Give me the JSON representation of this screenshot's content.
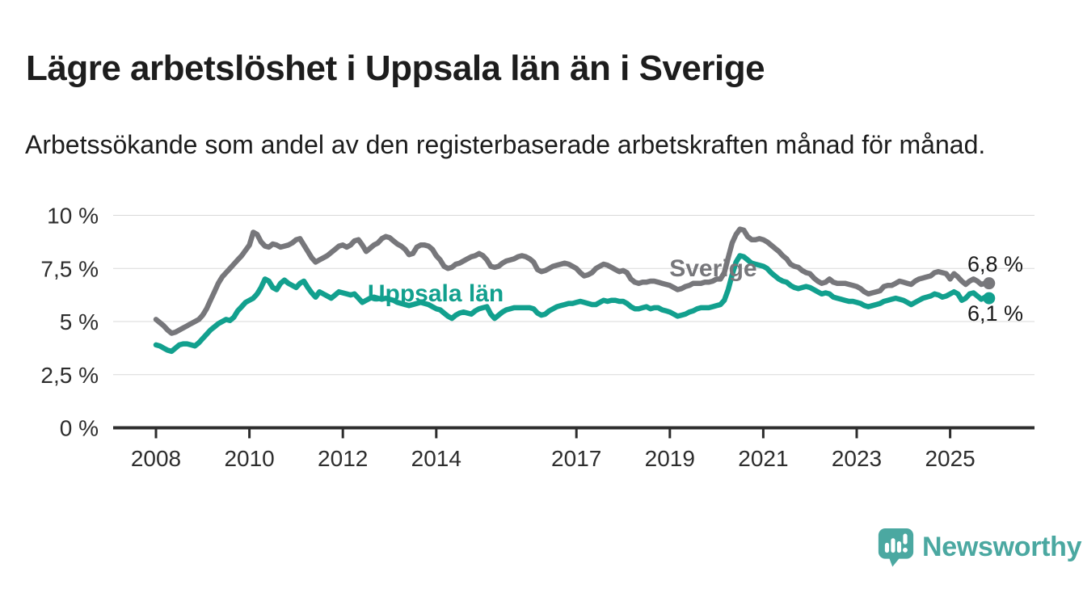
{
  "header": {
    "title": "Lägre arbetslöshet i Uppsala län än i Sverige",
    "subtitle": "Arbetssökande som andel av den registerbaserade arbetskraften månad för månad."
  },
  "chart_data": {
    "type": "line",
    "title": "Lägre arbetslöshet i Uppsala län än i Sverige",
    "x_unit": "month",
    "x_start": "2008-01",
    "x_end": "2025-11",
    "ylim": [
      0,
      10
    ],
    "grid": "horizontal",
    "legend_position": "inline-labels",
    "yticks": [
      {
        "value": 0,
        "label": "0 %"
      },
      {
        "value": 2.5,
        "label": "2,5 %"
      },
      {
        "value": 5,
        "label": "5 %"
      },
      {
        "value": 7.5,
        "label": "7,5 %"
      },
      {
        "value": 10,
        "label": "10 %"
      }
    ],
    "xticks": [
      {
        "value": 2008,
        "label": "2008"
      },
      {
        "value": 2010,
        "label": "2010"
      },
      {
        "value": 2012,
        "label": "2012"
      },
      {
        "value": 2014,
        "label": "2014"
      },
      {
        "value": 2017,
        "label": "2017"
      },
      {
        "value": 2019,
        "label": "2019"
      },
      {
        "value": 2021,
        "label": "2021"
      },
      {
        "value": 2023,
        "label": "2023"
      },
      {
        "value": 2025,
        "label": "2025"
      }
    ],
    "series": [
      {
        "name": "Sverige",
        "color": "#77777b",
        "label_anchor": {
          "year": 2018.99,
          "pct": 7.13
        },
        "end_label": {
          "text": "6,8 %",
          "year": 2025.37,
          "pct": 7.36
        },
        "last_value": 6.8,
        "values": [
          5.1,
          4.95,
          4.8,
          4.6,
          4.45,
          4.5,
          4.6,
          4.7,
          4.8,
          4.9,
          5.0,
          5.1,
          5.3,
          5.6,
          6.0,
          6.4,
          6.8,
          7.1,
          7.3,
          7.5,
          7.7,
          7.9,
          8.1,
          8.35,
          8.6,
          9.2,
          9.1,
          8.75,
          8.55,
          8.5,
          8.65,
          8.6,
          8.5,
          8.55,
          8.6,
          8.7,
          8.85,
          8.9,
          8.6,
          8.3,
          8.0,
          7.8,
          7.9,
          8.0,
          8.1,
          8.25,
          8.4,
          8.55,
          8.6,
          8.5,
          8.6,
          8.8,
          8.85,
          8.6,
          8.3,
          8.45,
          8.6,
          8.7,
          8.9,
          9.0,
          8.95,
          8.8,
          8.65,
          8.55,
          8.4,
          8.15,
          8.2,
          8.5,
          8.6,
          8.6,
          8.55,
          8.4,
          8.1,
          7.9,
          7.6,
          7.5,
          7.55,
          7.7,
          7.75,
          7.85,
          7.95,
          8.05,
          8.1,
          8.2,
          8.1,
          7.9,
          7.6,
          7.55,
          7.6,
          7.75,
          7.85,
          7.9,
          7.95,
          8.05,
          8.1,
          8.05,
          7.95,
          7.8,
          7.45,
          7.35,
          7.4,
          7.5,
          7.6,
          7.65,
          7.7,
          7.75,
          7.7,
          7.6,
          7.5,
          7.3,
          7.15,
          7.2,
          7.3,
          7.5,
          7.6,
          7.7,
          7.65,
          7.55,
          7.45,
          7.35,
          7.4,
          7.3,
          7.0,
          6.85,
          6.8,
          6.85,
          6.85,
          6.9,
          6.9,
          6.85,
          6.8,
          6.75,
          6.7,
          6.6,
          6.5,
          6.55,
          6.65,
          6.7,
          6.8,
          6.8,
          6.8,
          6.85,
          6.85,
          6.9,
          7.0,
          7.0,
          7.3,
          8.0,
          8.7,
          9.1,
          9.35,
          9.3,
          9.0,
          8.85,
          8.85,
          8.9,
          8.85,
          8.75,
          8.6,
          8.45,
          8.3,
          8.1,
          7.95,
          7.7,
          7.6,
          7.55,
          7.4,
          7.3,
          7.25,
          7.05,
          6.9,
          6.8,
          6.85,
          7.0,
          6.85,
          6.8,
          6.8,
          6.8,
          6.75,
          6.7,
          6.65,
          6.55,
          6.4,
          6.3,
          6.35,
          6.4,
          6.45,
          6.65,
          6.7,
          6.7,
          6.8,
          6.9,
          6.85,
          6.8,
          6.75,
          6.9,
          7.0,
          7.05,
          7.1,
          7.15,
          7.3,
          7.35,
          7.3,
          7.25,
          7.0,
          7.25,
          7.1,
          6.9,
          6.75,
          6.9,
          7.0,
          6.9,
          6.75,
          6.8,
          6.8
        ]
      },
      {
        "name": "Uppsala län",
        "color": "#12a08e",
        "label_anchor": {
          "year": 2012.53,
          "pct": 5.95
        },
        "end_label": {
          "text": "6,1 %",
          "year": 2025.37,
          "pct": 5.04
        },
        "last_value": 6.1,
        "values": [
          3.9,
          3.85,
          3.75,
          3.65,
          3.6,
          3.75,
          3.9,
          3.95,
          3.95,
          3.9,
          3.85,
          4.0,
          4.2,
          4.4,
          4.6,
          4.75,
          4.9,
          5.0,
          5.1,
          5.05,
          5.2,
          5.5,
          5.7,
          5.9,
          6.0,
          6.1,
          6.3,
          6.6,
          7.0,
          6.9,
          6.6,
          6.5,
          6.8,
          6.95,
          6.8,
          6.7,
          6.6,
          6.8,
          6.9,
          6.6,
          6.35,
          6.15,
          6.4,
          6.3,
          6.2,
          6.1,
          6.25,
          6.4,
          6.35,
          6.3,
          6.25,
          6.3,
          6.1,
          5.9,
          6.0,
          6.1,
          6.15,
          6.1,
          6.05,
          6.1,
          6.05,
          6.0,
          5.9,
          5.85,
          5.8,
          5.75,
          5.8,
          5.85,
          5.9,
          5.85,
          5.8,
          5.7,
          5.6,
          5.55,
          5.4,
          5.25,
          5.15,
          5.3,
          5.4,
          5.45,
          5.4,
          5.35,
          5.5,
          5.6,
          5.65,
          5.7,
          5.35,
          5.15,
          5.3,
          5.45,
          5.55,
          5.6,
          5.65,
          5.65,
          5.65,
          5.65,
          5.65,
          5.6,
          5.4,
          5.3,
          5.35,
          5.5,
          5.6,
          5.7,
          5.75,
          5.8,
          5.85,
          5.85,
          5.9,
          5.95,
          5.9,
          5.85,
          5.8,
          5.8,
          5.9,
          6.0,
          5.95,
          6.0,
          6.0,
          5.95,
          5.95,
          5.85,
          5.7,
          5.6,
          5.6,
          5.65,
          5.7,
          5.6,
          5.65,
          5.65,
          5.55,
          5.5,
          5.45,
          5.35,
          5.25,
          5.3,
          5.35,
          5.45,
          5.5,
          5.6,
          5.65,
          5.65,
          5.65,
          5.7,
          5.75,
          5.8,
          6.0,
          6.5,
          7.2,
          7.8,
          8.1,
          8.05,
          7.9,
          7.75,
          7.7,
          7.65,
          7.6,
          7.5,
          7.3,
          7.15,
          7.0,
          6.9,
          6.85,
          6.7,
          6.6,
          6.55,
          6.6,
          6.65,
          6.6,
          6.5,
          6.4,
          6.3,
          6.35,
          6.3,
          6.15,
          6.1,
          6.05,
          6.0,
          5.95,
          5.95,
          5.9,
          5.85,
          5.75,
          5.7,
          5.75,
          5.8,
          5.85,
          5.95,
          6.0,
          6.05,
          6.1,
          6.05,
          6.0,
          5.9,
          5.8,
          5.9,
          6.0,
          6.1,
          6.15,
          6.2,
          6.3,
          6.25,
          6.15,
          6.2,
          6.3,
          6.4,
          6.3,
          6.0,
          6.1,
          6.3,
          6.35,
          6.2,
          6.05,
          6.15,
          6.1
        ]
      }
    ]
  },
  "footer": {
    "brand": "Newsworthy",
    "brand_color": "#4ba8a1",
    "logo_icon": "speech-bubble-bar-chart-icon"
  }
}
